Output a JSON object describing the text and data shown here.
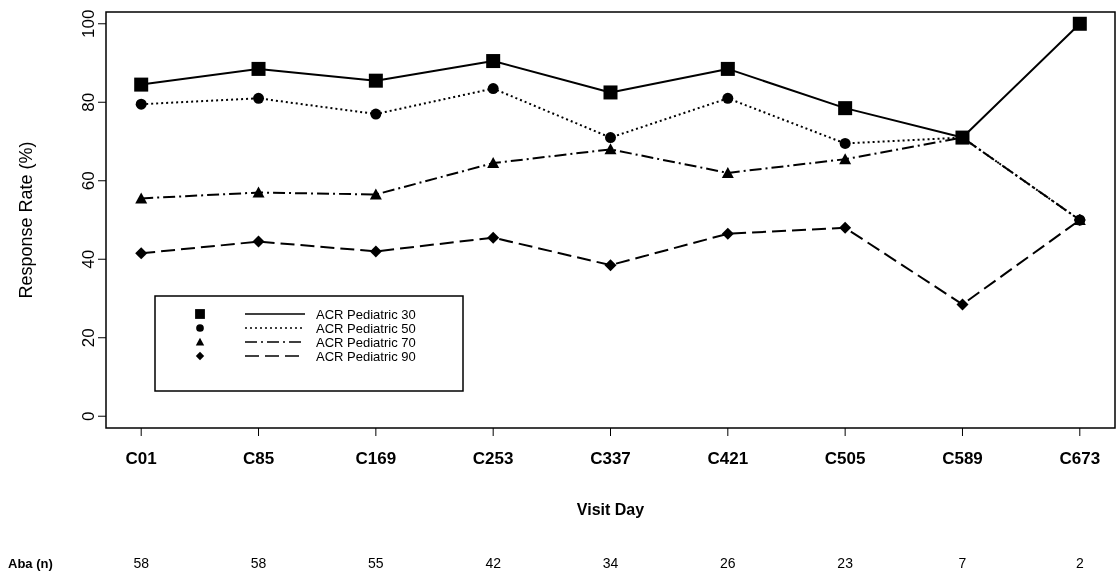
{
  "chart_data": {
    "type": "line",
    "xlabel": "Visit Day",
    "ylabel": "Response Rate (%)",
    "categories": [
      "C01",
      "C85",
      "C169",
      "C253",
      "C337",
      "C421",
      "C505",
      "C589",
      "C673"
    ],
    "series": [
      {
        "name": "ACR Pediatric 30",
        "color": "#000000",
        "marker": "square",
        "line_style": "solid",
        "values": [
          84.5,
          88.5,
          85.5,
          90.5,
          82.5,
          88.5,
          78.5,
          71,
          100
        ]
      },
      {
        "name": "ACR Pediatric 50",
        "color": "#000000",
        "marker": "circle",
        "line_style": "dotted",
        "values": [
          79.5,
          81,
          77,
          83.5,
          71,
          81,
          69.5,
          71,
          50
        ]
      },
      {
        "name": "ACR Pediatric 70",
        "color": "#000000",
        "marker": "triangle",
        "line_style": "dashdot",
        "values": [
          55.5,
          57,
          56.5,
          64.5,
          68,
          62,
          65.5,
          71,
          50
        ]
      },
      {
        "name": "ACR Pediatric 90",
        "color": "#000000",
        "marker": "diamond",
        "line_style": "dashed",
        "values": [
          41.5,
          44.5,
          42,
          45.5,
          38.5,
          46.5,
          48,
          28.5,
          50
        ]
      }
    ],
    "ylim": [
      -3,
      103
    ],
    "yticks": [
      0,
      20,
      40,
      60,
      80,
      100
    ],
    "legend": "bottom left",
    "grid": false,
    "annotations": [
      "Aba (n)",
      "58",
      "58",
      "55",
      "42",
      "34",
      "26",
      "23",
      "7",
      "2"
    ]
  }
}
